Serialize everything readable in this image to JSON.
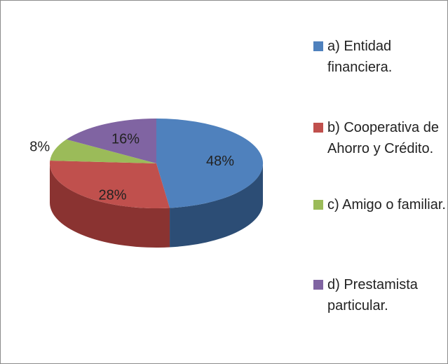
{
  "chart_data": {
    "type": "pie",
    "categories": [
      "a) Entidad financiera.",
      "b) Cooperativa de Ahorro y Crédito.",
      "c) Amigo o familiar.",
      "d) Prestamista particular."
    ],
    "values": [
      48,
      28,
      8,
      16
    ],
    "value_labels": [
      "48%",
      "28%",
      "8%",
      "16%"
    ],
    "colors": [
      "#4f81bd",
      "#c0504d",
      "#9bbb59",
      "#8064a2"
    ],
    "side_colors": [
      "#2c4d75",
      "#8a3331",
      "#6e8a3a",
      "#5a4479"
    ],
    "three_d": true,
    "legend": "right"
  }
}
